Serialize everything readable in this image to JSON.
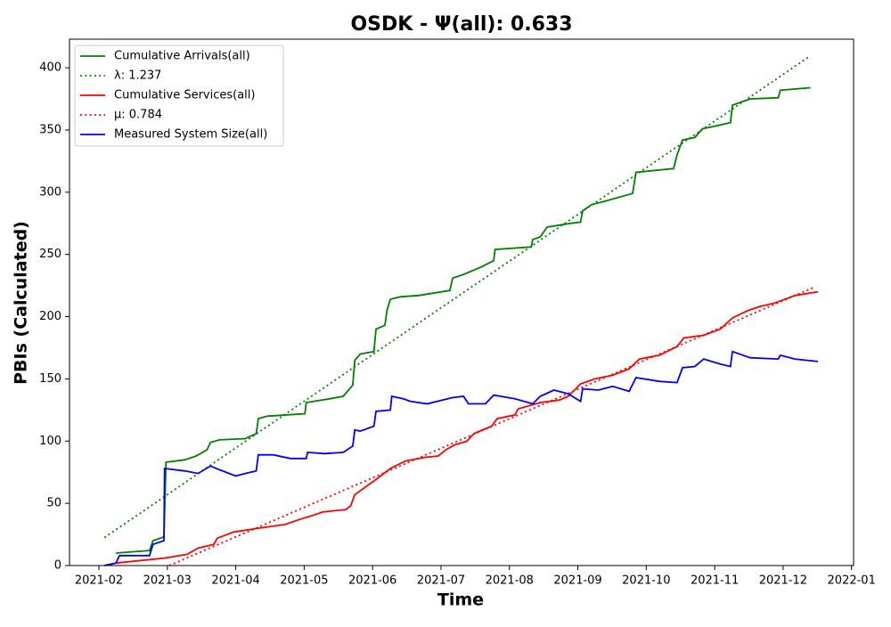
{
  "chart_data": {
    "type": "line",
    "title": "OSDK -  Ψ(all): 0.633",
    "xlabel": "Time",
    "ylabel": "PBIs (Calculated)",
    "xlim": [
      1.57,
      13.03
    ],
    "ylim": [
      0,
      423
    ],
    "xticks": [
      {
        "value": 2,
        "label": "2021-02"
      },
      {
        "value": 3,
        "label": "2021-03"
      },
      {
        "value": 4,
        "label": "2021-04"
      },
      {
        "value": 5,
        "label": "2021-05"
      },
      {
        "value": 6,
        "label": "2021-06"
      },
      {
        "value": 7,
        "label": "2021-07"
      },
      {
        "value": 8,
        "label": "2021-08"
      },
      {
        "value": 9,
        "label": "2021-09"
      },
      {
        "value": 10,
        "label": "2021-10"
      },
      {
        "value": 11,
        "label": "2021-11"
      },
      {
        "value": 12,
        "label": "2021-12"
      },
      {
        "value": 13,
        "label": "2022-01"
      }
    ],
    "yticks": [
      0,
      50,
      100,
      150,
      200,
      250,
      300,
      350,
      400
    ],
    "legend": "upper left",
    "series": [
      {
        "name": "Cumulative Arrivals(all)",
        "color": "#008000",
        "style": "solid",
        "x": [
          2.25,
          2.74,
          2.79,
          2.95,
          2.98,
          3.26,
          3.42,
          3.58,
          3.63,
          3.76,
          4.14,
          4.3,
          4.33,
          4.46,
          5.01,
          5.03,
          5.37,
          5.57,
          5.71,
          5.74,
          5.82,
          6.02,
          6.05,
          6.18,
          6.21,
          6.26,
          6.41,
          6.67,
          7.13,
          7.17,
          7.33,
          7.59,
          7.77,
          7.79,
          8.32,
          8.34,
          8.45,
          8.55,
          8.89,
          9.04,
          9.07,
          9.2,
          9.41,
          9.8,
          9.85,
          10.4,
          10.45,
          10.53,
          10.71,
          10.82,
          11.08,
          11.23,
          11.26,
          11.52,
          11.93,
          11.96,
          12.4
        ],
        "values": [
          10,
          12,
          20,
          23,
          83,
          85,
          88,
          93,
          99,
          101,
          102,
          106,
          118,
          120,
          122,
          131,
          134,
          136,
          145,
          165,
          170,
          172,
          190,
          193,
          205,
          214,
          216,
          217,
          221,
          231,
          234,
          240,
          245,
          254,
          256,
          262,
          264,
          272,
          275,
          276,
          285,
          290,
          293,
          299,
          316,
          319,
          330,
          342,
          344,
          351,
          354,
          356,
          370,
          375,
          376,
          382,
          384
        ]
      },
      {
        "name": "λ: 1.237",
        "color": "#008000",
        "style": "dotted",
        "x": [
          2.08,
          12.38
        ],
        "values": [
          22.5,
          409
        ]
      },
      {
        "name": "Cumulative Services(all)",
        "color": "#ff0000",
        "style": "solid",
        "x": [
          2.08,
          2.25,
          2.96,
          3.29,
          3.45,
          3.68,
          3.73,
          3.97,
          4.33,
          4.72,
          4.93,
          5.11,
          5.27,
          5.61,
          5.68,
          5.74,
          6.02,
          6.26,
          6.48,
          6.78,
          6.96,
          7.07,
          7.2,
          7.38,
          7.48,
          7.74,
          7.82,
          8.08,
          8.13,
          8.45,
          8.73,
          8.86,
          9.04,
          9.25,
          9.51,
          9.75,
          9.9,
          10.19,
          10.45,
          10.55,
          10.84,
          11.08,
          11.26,
          11.49,
          11.65,
          11.88,
          12.17,
          12.51
        ],
        "values": [
          0,
          2,
          6,
          9,
          14,
          17,
          22,
          27,
          30,
          33,
          37,
          40,
          43,
          45,
          48,
          57,
          68,
          78,
          84,
          87,
          88,
          93,
          97,
          100,
          106,
          112,
          118,
          121,
          126,
          131,
          133,
          136,
          146,
          150,
          153,
          158,
          166,
          169,
          176,
          183,
          185,
          190,
          199,
          205,
          208,
          211,
          217,
          220
        ]
      },
      {
        "name": "μ: 0.784",
        "color": "#ff0000",
        "style": "dotted",
        "x": [
          3.03,
          12.47
        ],
        "values": [
          0,
          224
        ]
      },
      {
        "name": "Measured System Size(all)",
        "color": "#0000ff",
        "style": "solid",
        "x": [
          2.08,
          2.25,
          2.3,
          2.5,
          2.74,
          2.79,
          2.95,
          2.96,
          3.26,
          3.45,
          3.63,
          3.76,
          4.0,
          4.14,
          4.3,
          4.33,
          4.55,
          4.8,
          5.03,
          5.05,
          5.3,
          5.57,
          5.71,
          5.74,
          5.82,
          6.02,
          6.05,
          6.26,
          6.28,
          6.45,
          6.55,
          6.8,
          7.17,
          7.33,
          7.4,
          7.65,
          7.77,
          8.08,
          8.34,
          8.45,
          8.65,
          8.86,
          9.04,
          9.07,
          9.3,
          9.51,
          9.75,
          9.85,
          10.19,
          10.45,
          10.53,
          10.71,
          10.84,
          11.08,
          11.23,
          11.26,
          11.52,
          11.93,
          11.96,
          12.17,
          12.51
        ],
        "values": [
          0,
          2,
          8,
          8,
          8,
          17,
          20,
          78,
          76,
          74,
          80,
          77,
          72,
          74,
          76,
          89,
          89,
          86,
          86,
          91,
          90,
          91,
          96,
          109,
          108,
          112,
          124,
          125,
          136,
          134,
          132,
          130,
          135,
          136,
          130,
          130,
          137,
          134,
          130,
          136,
          141,
          138,
          132,
          142,
          141,
          144,
          140,
          151,
          148,
          147,
          159,
          160,
          166,
          162,
          160,
          172,
          167,
          166,
          169,
          166,
          164
        ]
      }
    ]
  }
}
